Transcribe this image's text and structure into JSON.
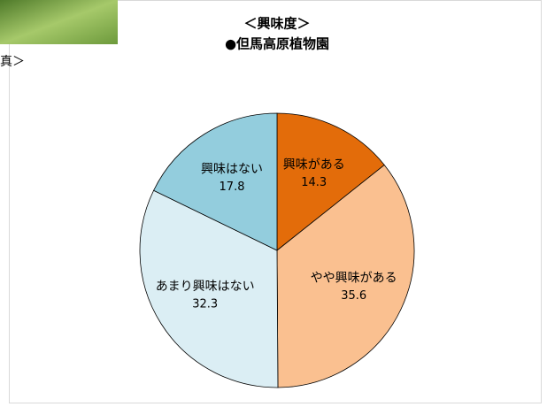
{
  "caption_fragment": "真＞",
  "chart_data": {
    "type": "pie",
    "title": "＜興味度＞",
    "subtitle": "●但馬高原植物園",
    "categories": [
      "興味がある",
      "やや興味がある",
      "あまり興味はない",
      "興味はない"
    ],
    "values": [
      14.3,
      35.6,
      32.3,
      17.8
    ],
    "colors": [
      "#e36c0a",
      "#fac090",
      "#dbeef4",
      "#93cddd"
    ]
  }
}
